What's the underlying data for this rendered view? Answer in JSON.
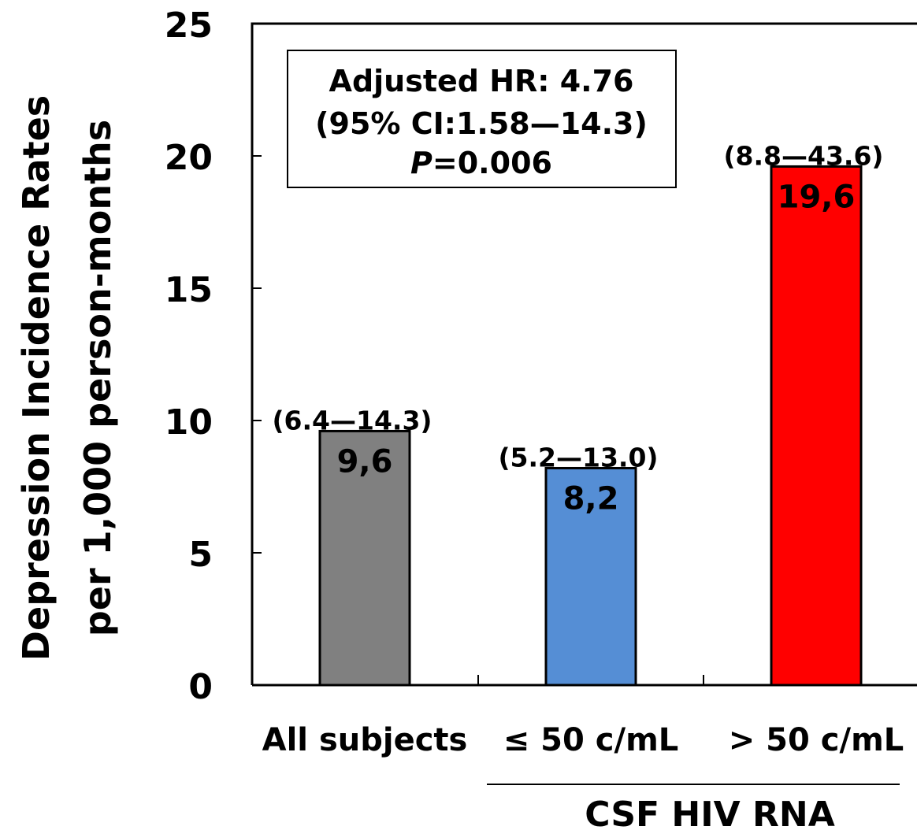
{
  "chart_data": {
    "type": "bar",
    "categories": [
      "All subjects",
      "≤ 50 c/mL",
      "> 50 c/mL"
    ],
    "values": [
      9.6,
      8.2,
      19.6
    ],
    "value_labels": [
      "9,6",
      "8,2",
      "19,6"
    ],
    "ci_labels": [
      "(6.4—14.3)",
      "(5.2—13.0)",
      "(8.8—43.6)"
    ],
    "bar_colors": [
      "#808080",
      "#558ed5",
      "#ff0000"
    ],
    "ylabel_lines": [
      "Depression Incidence Rates",
      "per 1,000 person-months"
    ],
    "ylim": [
      0,
      25
    ],
    "yticks": [
      "0",
      "5",
      "10",
      "15",
      "20",
      "25"
    ],
    "group_label": "CSF HIV RNA",
    "annotation": {
      "line1": "Adjusted HR: 4.76",
      "line2": "(95% CI:1.58—14.3)",
      "p_label": "P",
      "p_value": "=0.006"
    }
  }
}
